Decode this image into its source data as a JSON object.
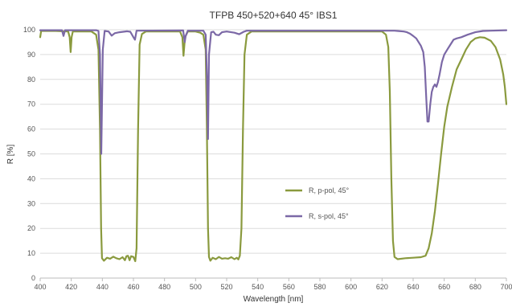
{
  "chart_data": {
    "type": "line",
    "title": "TFPB 450+520+640 45° IBS1",
    "xlabel": "Wavelength [nm]",
    "ylabel": "R [%]",
    "xlim": [
      400,
      700
    ],
    "ylim": [
      0,
      100
    ],
    "xticks": [
      "400",
      "420",
      "440",
      "460",
      "480",
      "500",
      "520",
      "540",
      "560",
      "580",
      "600",
      "620",
      "640",
      "660",
      "680",
      "700"
    ],
    "yticks": [
      "0",
      "10",
      "20",
      "30",
      "40",
      "50",
      "60",
      "70",
      "80",
      "90",
      "100"
    ],
    "grid": "horizontal",
    "legend_position": "center-right",
    "series": [
      {
        "name": "R, p-pol, 45°",
        "color": "#8a9a3e",
        "points": [
          [
            400,
            97
          ],
          [
            400.6,
            99.5
          ],
          [
            410,
            99.5
          ],
          [
            418,
            99.3
          ],
          [
            419,
            97
          ],
          [
            419.6,
            91
          ],
          [
            420.2,
            97
          ],
          [
            421,
            99.3
          ],
          [
            433,
            99.3
          ],
          [
            436,
            98
          ],
          [
            437.5,
            92
          ],
          [
            438.5,
            60
          ],
          [
            439.2,
            20
          ],
          [
            439.8,
            8
          ],
          [
            441,
            7
          ],
          [
            443,
            8.2
          ],
          [
            445,
            7.8
          ],
          [
            447,
            8.6
          ],
          [
            449,
            8
          ],
          [
            451,
            7.6
          ],
          [
            453,
            8.4
          ],
          [
            454.5,
            7.2
          ],
          [
            455.5,
            8.8
          ],
          [
            456.5,
            9
          ],
          [
            457.5,
            7.2
          ],
          [
            458.5,
            8.8
          ],
          [
            460,
            8.5
          ],
          [
            461.2,
            6.8
          ],
          [
            462,
            12
          ],
          [
            463,
            60
          ],
          [
            464,
            94
          ],
          [
            465.5,
            98.3
          ],
          [
            468,
            99.3
          ],
          [
            490,
            99.3
          ],
          [
            491.5,
            97
          ],
          [
            492.2,
            89.5
          ],
          [
            493.2,
            97
          ],
          [
            495,
            99.3
          ],
          [
            500,
            99.3
          ],
          [
            503,
            98.8
          ],
          [
            505,
            98
          ],
          [
            506.5,
            92
          ],
          [
            507.3,
            60
          ],
          [
            508,
            20
          ],
          [
            508.6,
            8.5
          ],
          [
            509.5,
            7
          ],
          [
            511,
            8.2
          ],
          [
            513,
            7.6
          ],
          [
            515,
            8.5
          ],
          [
            517,
            7.8
          ],
          [
            519,
            8
          ],
          [
            521,
            7.8
          ],
          [
            523,
            8.4
          ],
          [
            525,
            7.6
          ],
          [
            526.5,
            8.2
          ],
          [
            527.5,
            7.5
          ],
          [
            528.5,
            9
          ],
          [
            529.5,
            20
          ],
          [
            530.5,
            60
          ],
          [
            531.5,
            90
          ],
          [
            533,
            98
          ],
          [
            536,
            99.3
          ],
          [
            620,
            99.3
          ],
          [
            622.5,
            98
          ],
          [
            624,
            93
          ],
          [
            625,
            75
          ],
          [
            626,
            40
          ],
          [
            627,
            15
          ],
          [
            628,
            8.5
          ],
          [
            630,
            7.6
          ],
          [
            635,
            8
          ],
          [
            640,
            8.2
          ],
          [
            645,
            8.4
          ],
          [
            648,
            9
          ],
          [
            650,
            12
          ],
          [
            652,
            18
          ],
          [
            654,
            27
          ],
          [
            656,
            38
          ],
          [
            658,
            50
          ],
          [
            660,
            61
          ],
          [
            662,
            69
          ],
          [
            665,
            77
          ],
          [
            668,
            84
          ],
          [
            671,
            88
          ],
          [
            674,
            92
          ],
          [
            677,
            95
          ],
          [
            680,
            96.5
          ],
          [
            683,
            97
          ],
          [
            686,
            96.8
          ],
          [
            690,
            95.5
          ],
          [
            693,
            93
          ],
          [
            696,
            88
          ],
          [
            698,
            82
          ],
          [
            699,
            77
          ],
          [
            700,
            70
          ]
        ]
      },
      {
        "name": "R, s-pol, 45°",
        "color": "#7b68a6",
        "points": [
          [
            400,
            99.8
          ],
          [
            414,
            99.8
          ],
          [
            415,
            97.5
          ],
          [
            416,
            99.8
          ],
          [
            436,
            99.8
          ],
          [
            437.5,
            99.5
          ],
          [
            438.5,
            90
          ],
          [
            439.3,
            50
          ],
          [
            440.3,
            92
          ],
          [
            441.5,
            99.5
          ],
          [
            444,
            99.3
          ],
          [
            446,
            97.6
          ],
          [
            448,
            98.6
          ],
          [
            451,
            99
          ],
          [
            456,
            99.4
          ],
          [
            458,
            99.2
          ],
          [
            460,
            97
          ],
          [
            461,
            96
          ],
          [
            462,
            99.6
          ],
          [
            492,
            99.7
          ],
          [
            493,
            95
          ],
          [
            493.6,
            97.5
          ],
          [
            495,
            99.6
          ],
          [
            505,
            99.6
          ],
          [
            506.5,
            98
          ],
          [
            507.4,
            80
          ],
          [
            508,
            56
          ],
          [
            508.6,
            90
          ],
          [
            510,
            99
          ],
          [
            511.5,
            99.2
          ],
          [
            513,
            98
          ],
          [
            515,
            97.8
          ],
          [
            517,
            99
          ],
          [
            520,
            99.3
          ],
          [
            525,
            98.8
          ],
          [
            528,
            98.2
          ],
          [
            531,
            99.2
          ],
          [
            533,
            99.6
          ],
          [
            628,
            99.6
          ],
          [
            630,
            99.5
          ],
          [
            634,
            99.3
          ],
          [
            636,
            99
          ],
          [
            638,
            98.4
          ],
          [
            640,
            97.5
          ],
          [
            642,
            96.5
          ],
          [
            643.5,
            95
          ],
          [
            645,
            93.5
          ],
          [
            646.5,
            91
          ],
          [
            647.5,
            85
          ],
          [
            648.5,
            72
          ],
          [
            649.2,
            63
          ],
          [
            650,
            63
          ],
          [
            651,
            70
          ],
          [
            652,
            75
          ],
          [
            653,
            77
          ],
          [
            654,
            78
          ],
          [
            655,
            77
          ],
          [
            656,
            79
          ],
          [
            657,
            82
          ],
          [
            658.5,
            87
          ],
          [
            660,
            90
          ],
          [
            662,
            92
          ],
          [
            664,
            94
          ],
          [
            666,
            96
          ],
          [
            668,
            96.5
          ],
          [
            671,
            97
          ],
          [
            675,
            98
          ],
          [
            680,
            99
          ],
          [
            685,
            99.5
          ],
          [
            690,
            99.6
          ],
          [
            700,
            99.8
          ]
        ]
      }
    ]
  }
}
